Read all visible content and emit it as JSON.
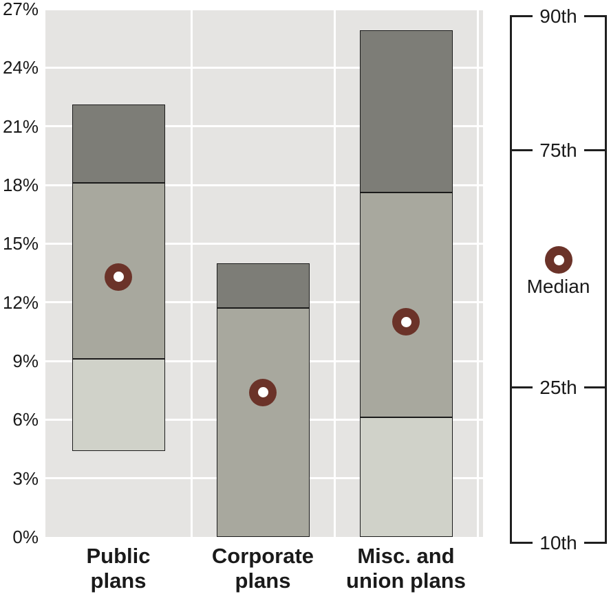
{
  "chart_data": {
    "type": "bar",
    "subtype": "floating-percentile-range-bars",
    "title": "",
    "xlabel": "",
    "ylabel": "",
    "units": "percent",
    "grid": "on",
    "legend_position": "right",
    "categories": [
      {
        "name": "Public plans",
        "label_lines": [
          "Public",
          "plans"
        ]
      },
      {
        "name": "Corporate plans",
        "label_lines": [
          "Corporate",
          "plans"
        ]
      },
      {
        "name": "Misc. and union plans",
        "label_lines": [
          "Misc. and",
          "union plans"
        ]
      }
    ],
    "series": [
      {
        "name": "Public plans",
        "p10": 4.4,
        "p25": 9.1,
        "median": 13.3,
        "p75": 18.1,
        "p90": 22.1
      },
      {
        "name": "Corporate plans",
        "p10": 0,
        "p25": 0,
        "median": 7.4,
        "p75": 11.7,
        "p90": 14.0
      },
      {
        "name": "Misc. and union plans",
        "p10": 0,
        "p25": 6.1,
        "median": 11.0,
        "p75": 17.6,
        "p90": 25.9
      }
    ],
    "y_axis": {
      "min": 0,
      "max": 27,
      "step": 3,
      "tick_labels": [
        "0%",
        "3%",
        "6%",
        "9%",
        "12%",
        "15%",
        "18%",
        "21%",
        "24%",
        "27%"
      ]
    },
    "legend": {
      "items": [
        "90th",
        "75th",
        "Median",
        "25th",
        "10th"
      ]
    }
  },
  "colors": {
    "plot_background": "#e5e4e2",
    "gridline": "#ffffff",
    "band_10_25": "#d0d2c9",
    "band_25_75": "#a8a89e",
    "band_75_90": "#7d7d77",
    "median_dot": "#6b3329",
    "median_dot_center": "#ffffff",
    "bar_border": "#1a1a1a",
    "legend_line": "#1f1f1f",
    "text": "#1a1a1a"
  }
}
